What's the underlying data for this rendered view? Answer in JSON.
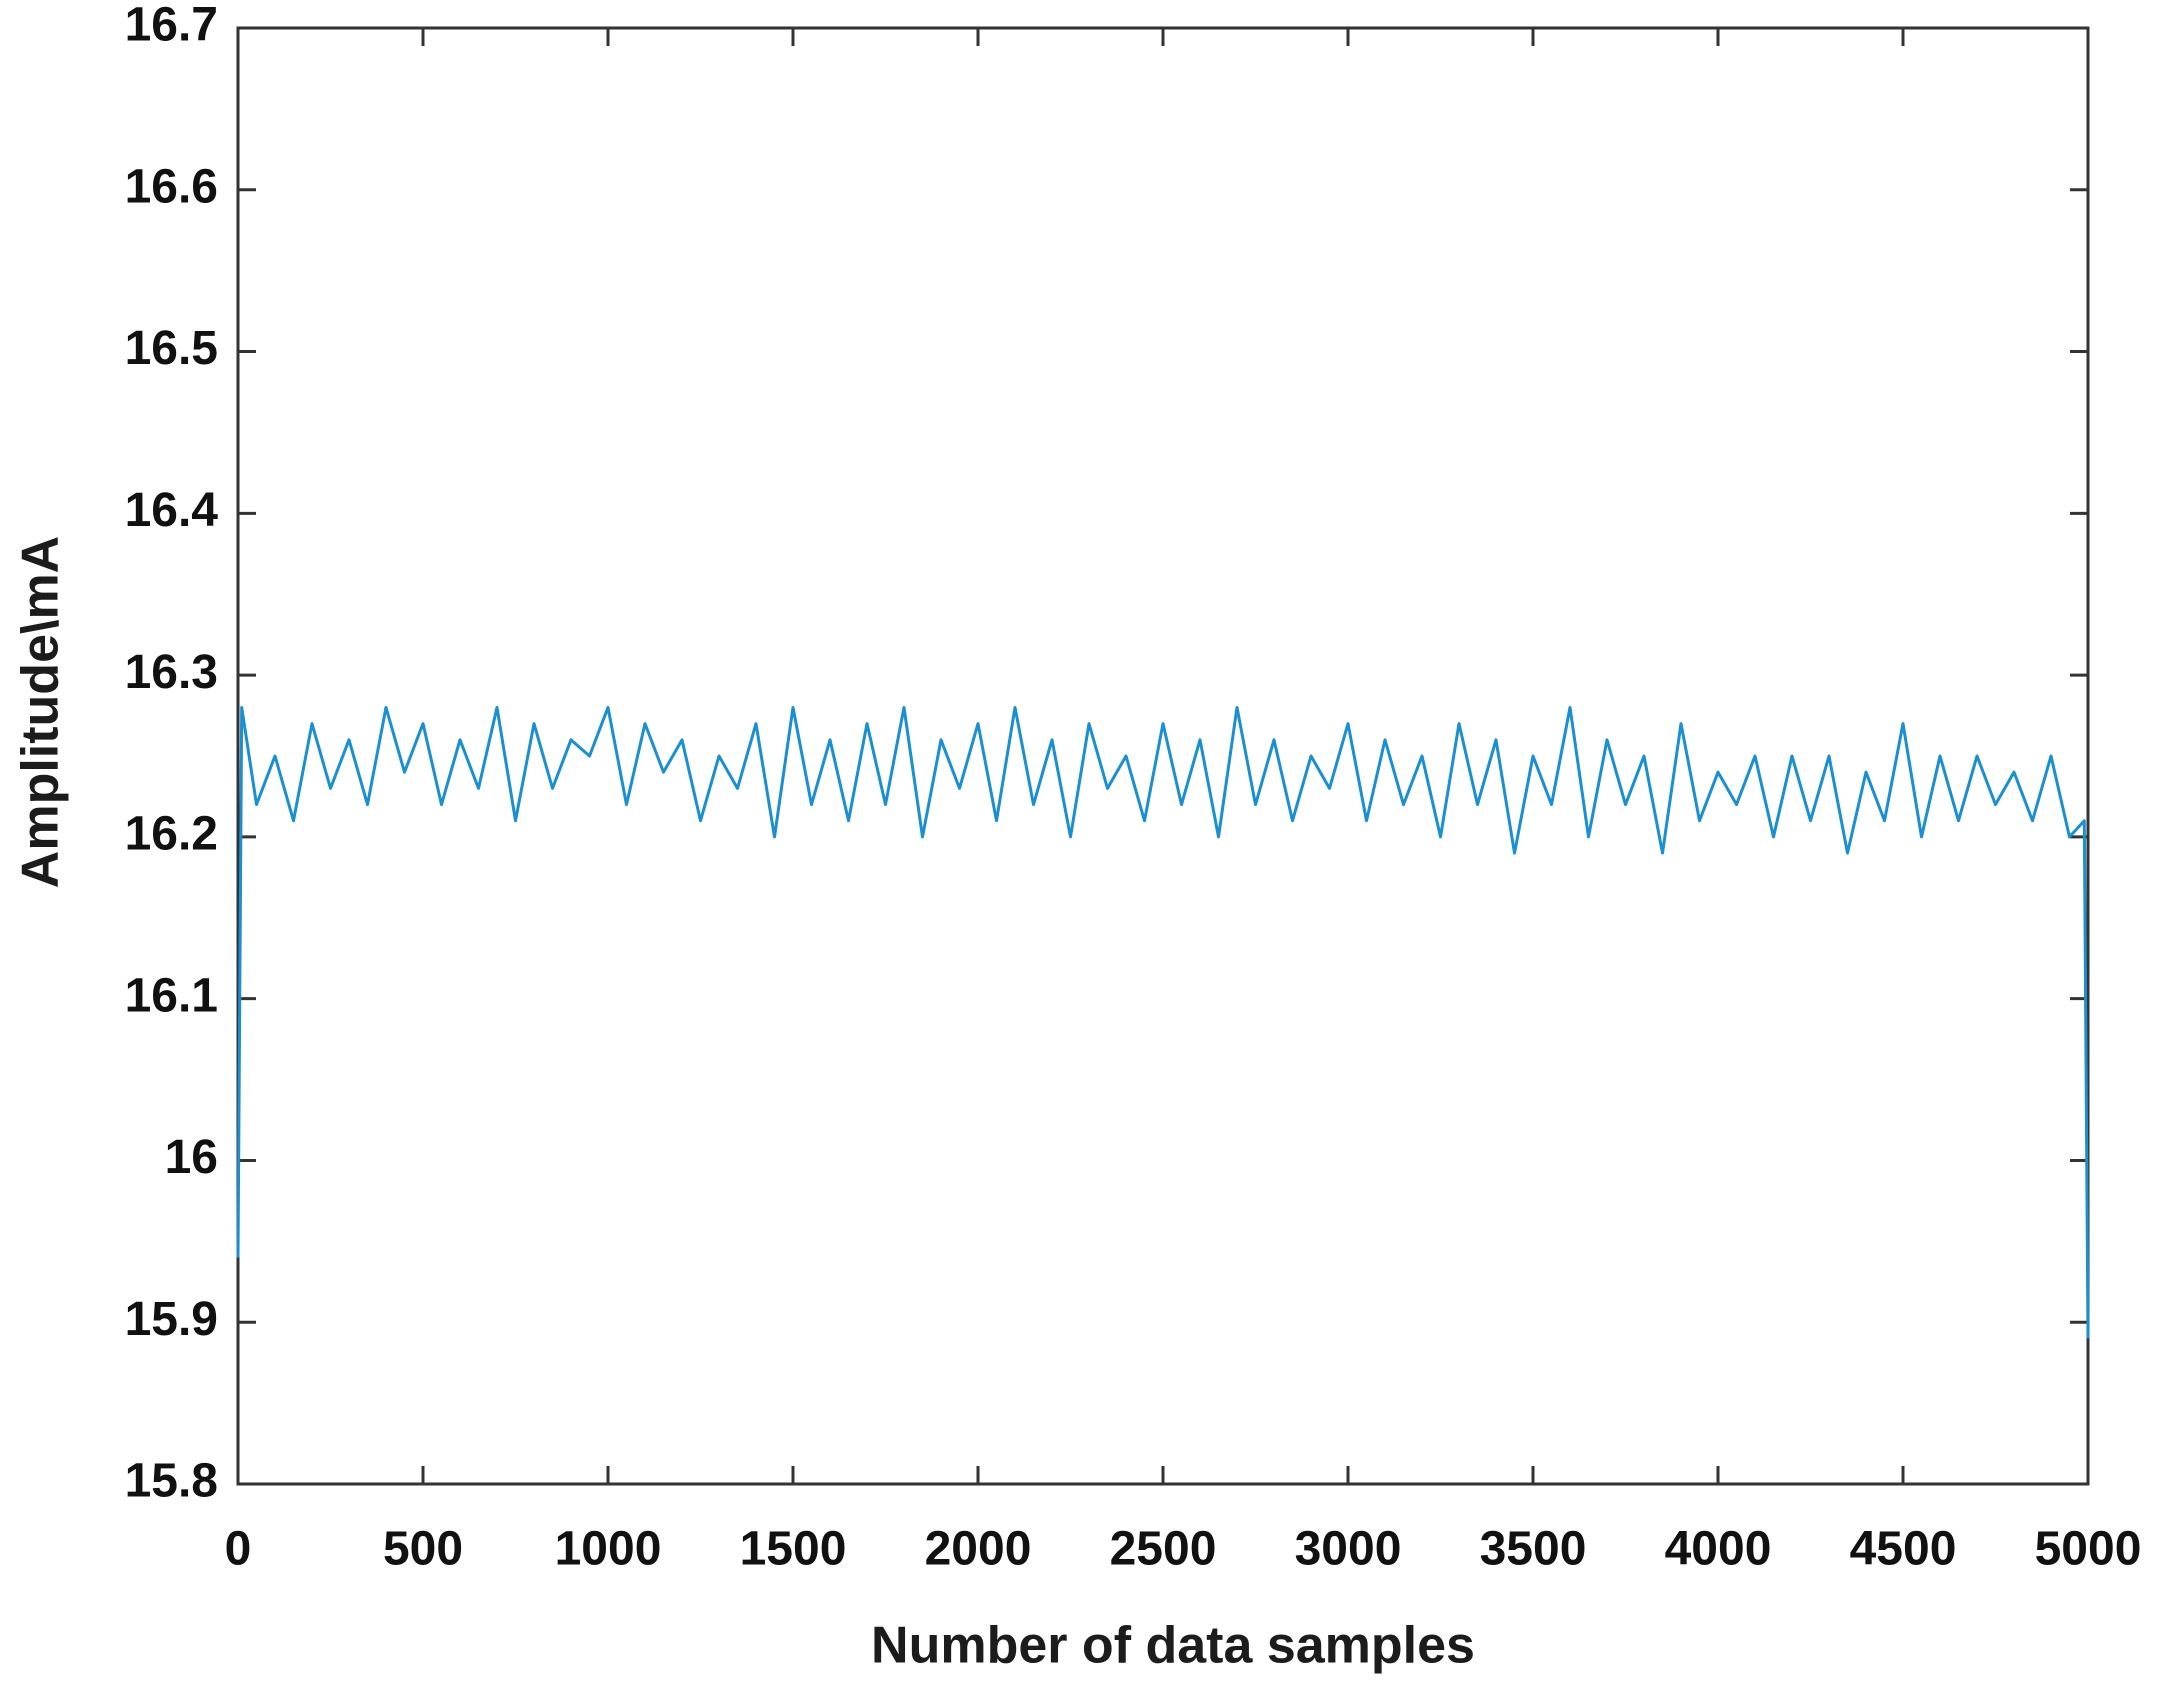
{
  "chart_data": {
    "type": "line",
    "xlabel": "Number of data samples",
    "ylabel": "Amplitude\\mA",
    "x": [
      0,
      10,
      50,
      100,
      150,
      200,
      250,
      300,
      350,
      400,
      450,
      500,
      550,
      600,
      650,
      700,
      750,
      800,
      850,
      900,
      950,
      1000,
      1050,
      1100,
      1150,
      1200,
      1250,
      1300,
      1350,
      1400,
      1450,
      1500,
      1550,
      1600,
      1650,
      1700,
      1750,
      1800,
      1850,
      1900,
      1950,
      2000,
      2050,
      2100,
      2150,
      2200,
      2250,
      2300,
      2350,
      2400,
      2450,
      2500,
      2550,
      2600,
      2650,
      2700,
      2750,
      2800,
      2850,
      2900,
      2950,
      3000,
      3050,
      3100,
      3150,
      3200,
      3250,
      3300,
      3350,
      3400,
      3450,
      3500,
      3550,
      3600,
      3650,
      3700,
      3750,
      3800,
      3850,
      3900,
      3950,
      4000,
      4050,
      4100,
      4150,
      4200,
      4250,
      4300,
      4350,
      4400,
      4450,
      4500,
      4550,
      4600,
      4650,
      4700,
      4750,
      4800,
      4850,
      4900,
      4950,
      4990,
      5000
    ],
    "series": [
      {
        "name": "Amplitude",
        "color": "#1a8fd2",
        "values": [
          15.94,
          16.28,
          16.22,
          16.25,
          16.21,
          16.27,
          16.23,
          16.26,
          16.22,
          16.28,
          16.24,
          16.27,
          16.22,
          16.26,
          16.23,
          16.28,
          16.21,
          16.27,
          16.23,
          16.26,
          16.25,
          16.28,
          16.22,
          16.27,
          16.24,
          16.26,
          16.21,
          16.25,
          16.23,
          16.27,
          16.2,
          16.28,
          16.22,
          16.26,
          16.21,
          16.27,
          16.22,
          16.28,
          16.2,
          16.26,
          16.23,
          16.27,
          16.21,
          16.28,
          16.22,
          16.26,
          16.2,
          16.27,
          16.23,
          16.25,
          16.21,
          16.27,
          16.22,
          16.26,
          16.2,
          16.28,
          16.22,
          16.26,
          16.21,
          16.25,
          16.23,
          16.27,
          16.21,
          16.26,
          16.22,
          16.25,
          16.2,
          16.27,
          16.22,
          16.26,
          16.19,
          16.25,
          16.22,
          16.28,
          16.2,
          16.26,
          16.22,
          16.25,
          16.19,
          16.27,
          16.21,
          16.24,
          16.22,
          16.25,
          16.2,
          16.25,
          16.21,
          16.25,
          16.19,
          16.24,
          16.21,
          16.27,
          16.2,
          16.25,
          16.21,
          16.25,
          16.22,
          16.24,
          16.21,
          16.25,
          16.2,
          16.21,
          15.89
        ]
      }
    ],
    "xlim": [
      0,
      5000
    ],
    "xticks": [
      0,
      500,
      1000,
      1500,
      2000,
      2500,
      3000,
      3500,
      4000,
      4500,
      5000
    ],
    "ylim": [
      15.8,
      16.7
    ],
    "yticks": [
      15.8,
      15.9,
      16,
      16.1,
      16.2,
      16.3,
      16.4,
      16.5,
      16.6,
      16.7
    ],
    "grid": false
  }
}
